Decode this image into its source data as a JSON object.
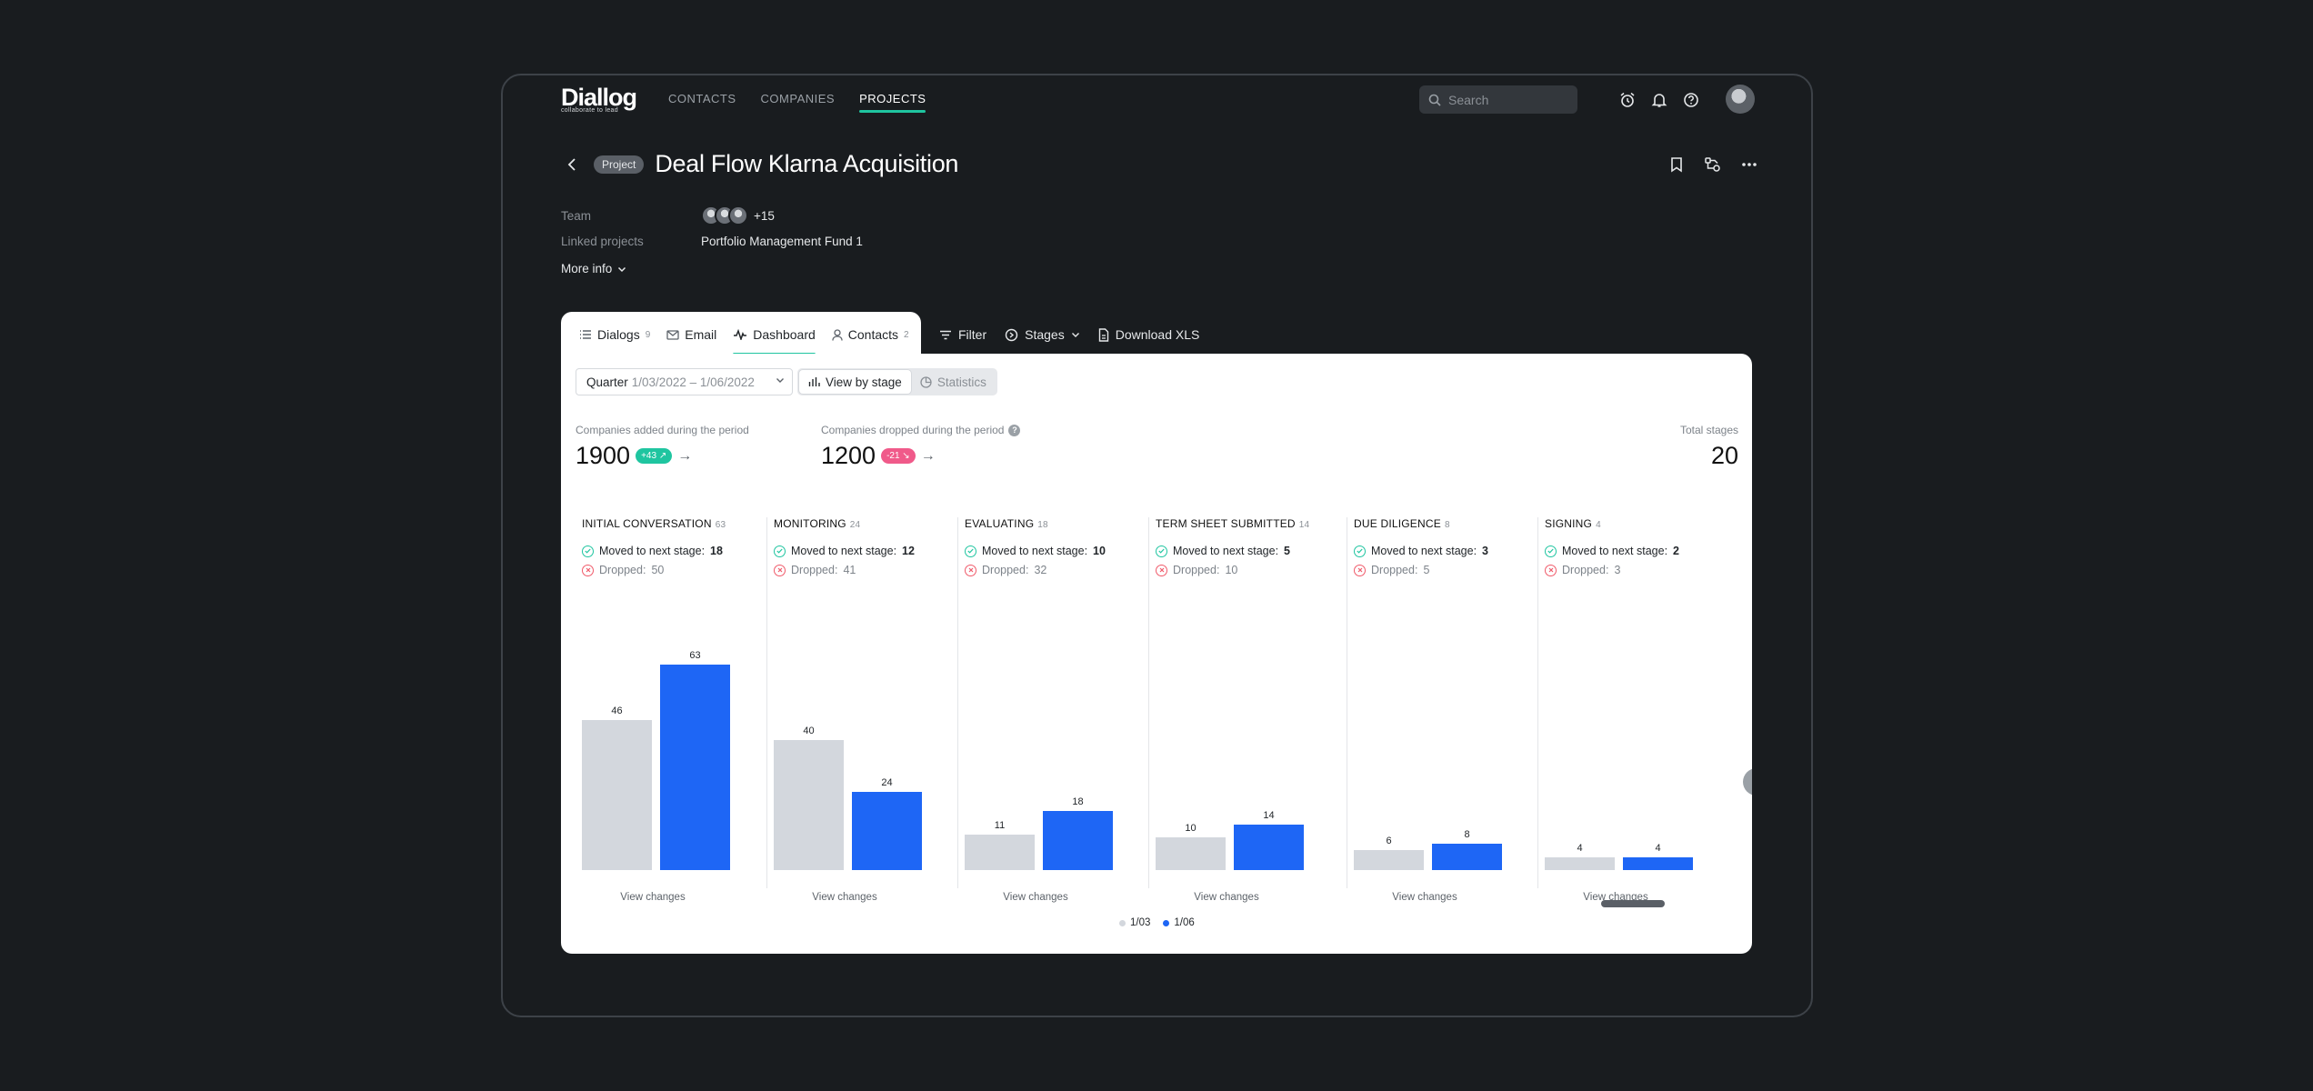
{
  "app": {
    "logo": "Diallog",
    "logo_tagline": "collaborate to lead",
    "nav": [
      {
        "label": "CONTACTS",
        "active": false
      },
      {
        "label": "COMPANIES",
        "active": false
      },
      {
        "label": "PROJECTS",
        "active": true
      }
    ],
    "search_placeholder": "Search",
    "accent_color": "#1fc5a0"
  },
  "project": {
    "pill": "Project",
    "title": "Deal Flow Klarna Acquisition",
    "team_label": "Team",
    "team_more": "+15",
    "linked_label": "Linked projects",
    "linked_value": "Portfolio Management Fund 1",
    "more_info": "More info"
  },
  "tabs": [
    {
      "label": "Dialogs",
      "count": "9",
      "icon": "list-icon"
    },
    {
      "label": "Email",
      "count": "",
      "icon": "mail-icon"
    },
    {
      "label": "Dashboard",
      "count": "",
      "icon": "pulse-icon",
      "active": true
    },
    {
      "label": "Contacts",
      "count": "2",
      "icon": "person-icon"
    }
  ],
  "toolbar": {
    "filter": "Filter",
    "stages": "Stages",
    "download": "Download XLS"
  },
  "controls": {
    "quarter_label": "Quarter",
    "quarter_range": "1/03/2022 – 1/06/2022",
    "view_by_stage": "View by stage",
    "statistics": "Statistics"
  },
  "stats": {
    "added_label": "Companies added during the period",
    "added_value": "1900",
    "added_badge": "+43 ↗",
    "dropped_label": "Companies dropped during the period",
    "dropped_value": "1200",
    "dropped_badge": "-21 ↘",
    "total_label": "Total stages",
    "total_value": "20"
  },
  "stage_labels": {
    "moved": "Moved to next stage:",
    "dropped": "Dropped:",
    "view_changes": "View changes"
  },
  "chart_data": {
    "type": "bar",
    "categories": [
      "INITIAL CONVERSATION",
      "MONITORING",
      "EVALUATING",
      "TERM SHEET SUBMITTED",
      "DUE DILIGENCE",
      "SIGNING"
    ],
    "category_counts": [
      "63",
      "24",
      "18",
      "14",
      "8",
      "4"
    ],
    "moved": [
      "18",
      "12",
      "10",
      "5",
      "3",
      "2"
    ],
    "dropped": [
      "50",
      "41",
      "32",
      "10",
      "5",
      "3"
    ],
    "series": [
      {
        "name": "1/03",
        "values": [
          46,
          40,
          11,
          10,
          6,
          4
        ],
        "color": "#d3d7dd"
      },
      {
        "name": "1/06",
        "values": [
          63,
          24,
          18,
          14,
          8,
          4
        ],
        "color": "#1e66f5"
      }
    ],
    "ylim": [
      0,
      63
    ],
    "legend_position": "bottom-center"
  }
}
